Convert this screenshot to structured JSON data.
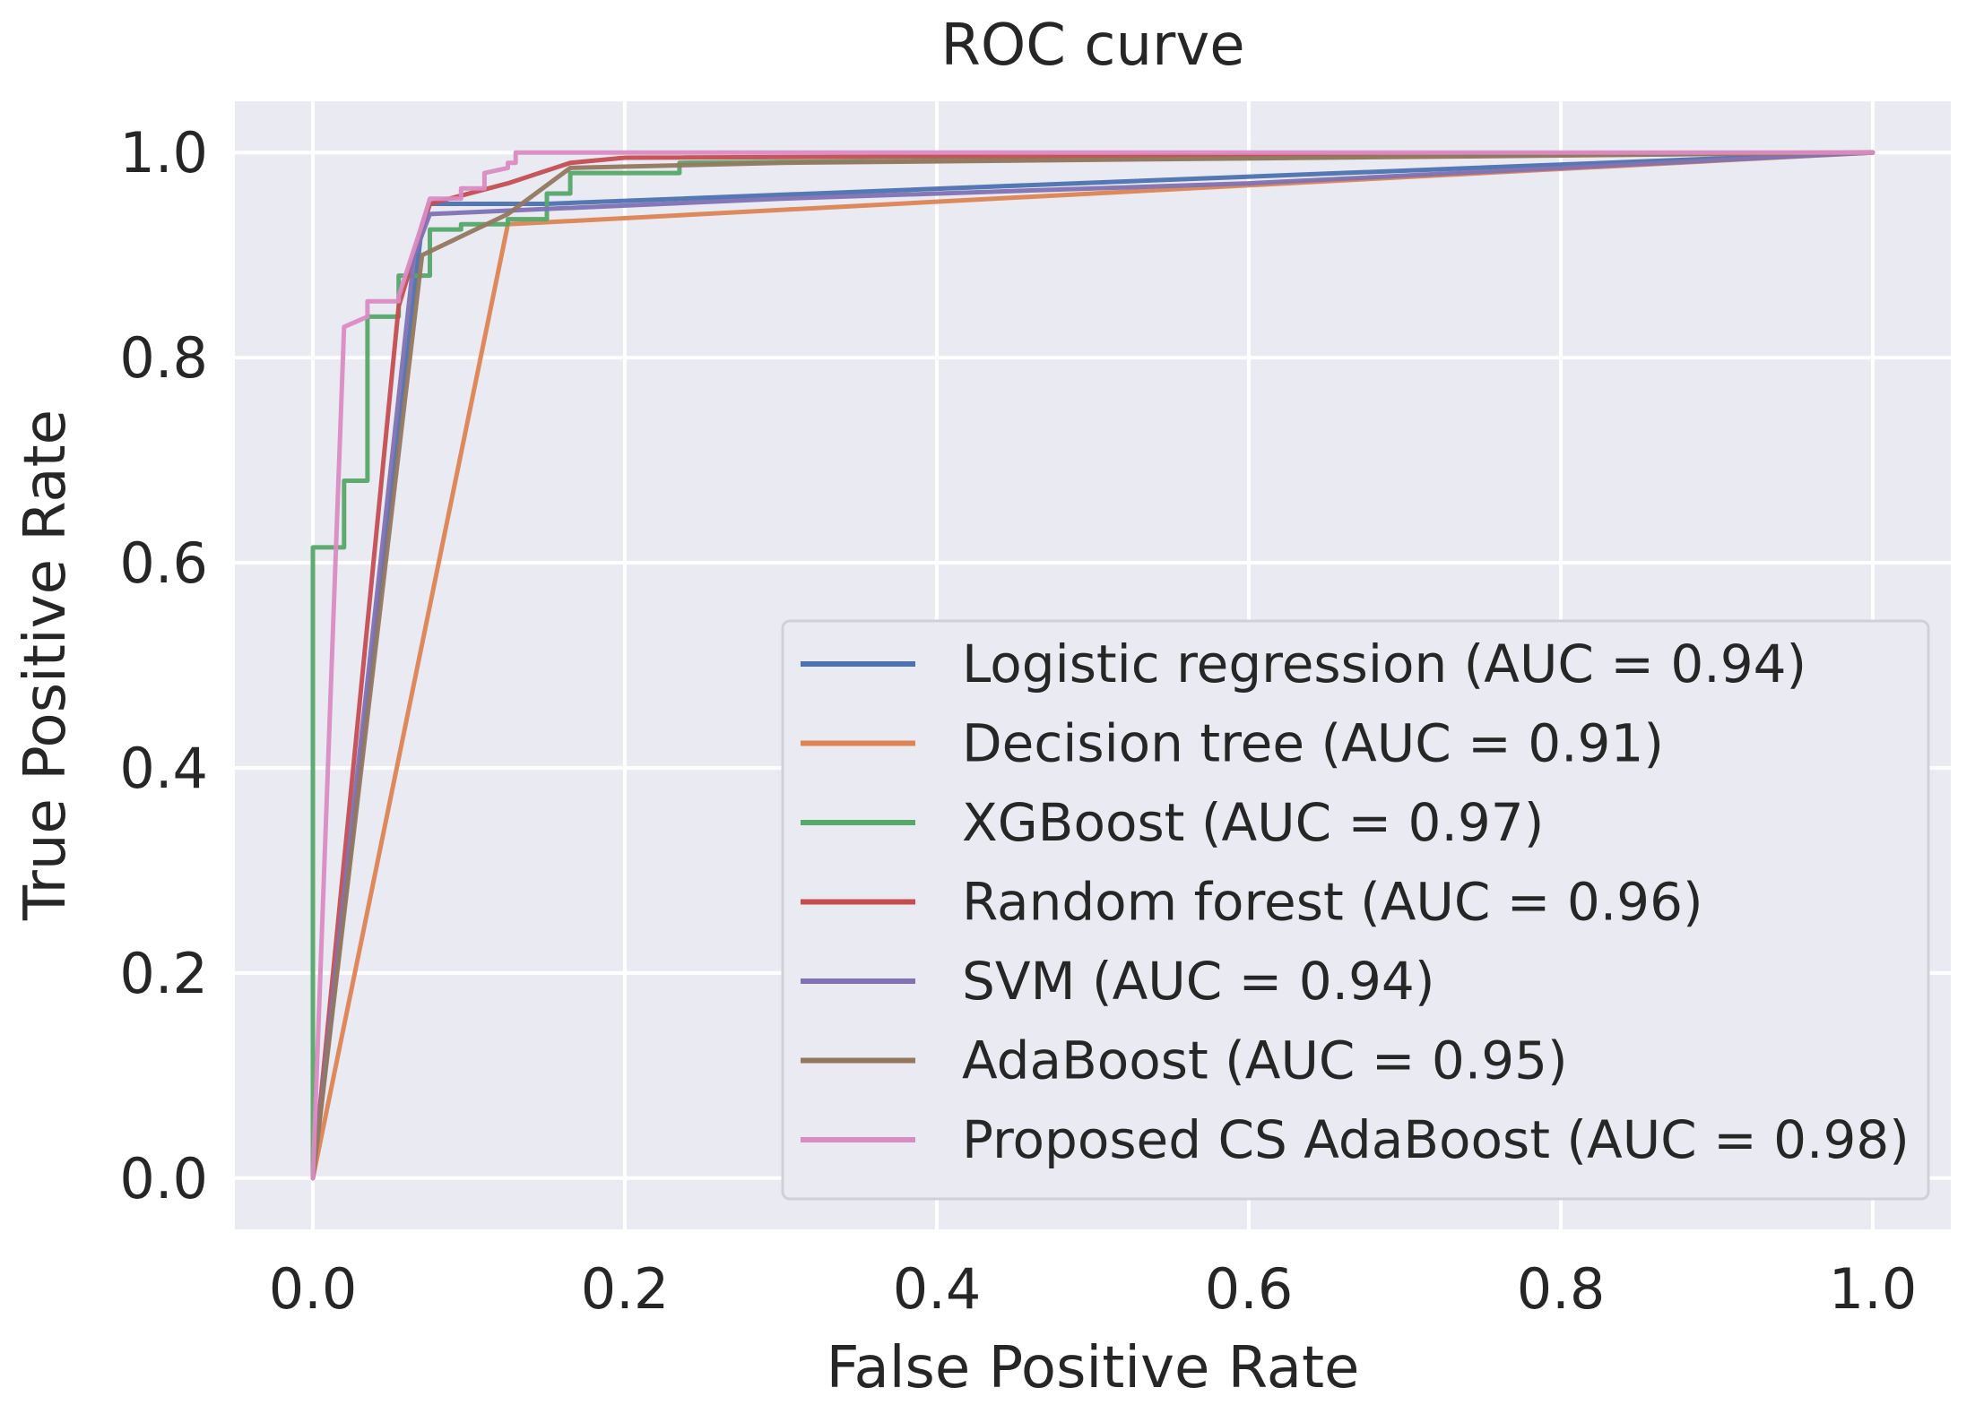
{
  "chart_data": {
    "type": "line",
    "title": "ROC curve",
    "xlabel": "False Positive Rate",
    "ylabel": "True Positive Rate",
    "xlim": [
      -0.05,
      1.05
    ],
    "ylim": [
      -0.05,
      1.05
    ],
    "xticks": [
      0.0,
      0.2,
      0.4,
      0.6,
      0.8,
      1.0
    ],
    "yticks": [
      0.0,
      0.2,
      0.4,
      0.6,
      0.8,
      1.0
    ],
    "tick_labels_x": [
      "0.0",
      "0.2",
      "0.4",
      "0.6",
      "0.8",
      "1.0"
    ],
    "tick_labels_y": [
      "0.0",
      "0.2",
      "0.4",
      "0.6",
      "0.8",
      "1.0"
    ],
    "grid": true,
    "legend_position": "lower-right",
    "series": [
      {
        "name": "Logistic regression (AUC = 0.94)",
        "color": "#4c72b0",
        "x": [
          0.0,
          0.07,
          0.075,
          0.15,
          0.15,
          1.0
        ],
        "y": [
          0.0,
          0.93,
          0.95,
          0.95,
          0.95,
          1.0
        ]
      },
      {
        "name": "Decision tree (AUC = 0.91)",
        "color": "#dd8452",
        "x": [
          0.0,
          0.125,
          1.0
        ],
        "y": [
          0.0,
          0.93,
          1.0
        ]
      },
      {
        "name": "XGBoost (AUC = 0.97)",
        "color": "#55a868",
        "x": [
          0.0,
          0.0,
          0.02,
          0.02,
          0.035,
          0.035,
          0.055,
          0.055,
          0.075,
          0.075,
          0.095,
          0.095,
          0.125,
          0.125,
          0.15,
          0.15,
          0.165,
          0.165,
          0.235,
          0.235,
          1.0
        ],
        "y": [
          0.0,
          0.615,
          0.615,
          0.68,
          0.68,
          0.84,
          0.84,
          0.88,
          0.88,
          0.925,
          0.925,
          0.93,
          0.93,
          0.935,
          0.935,
          0.96,
          0.96,
          0.98,
          0.98,
          0.99,
          1.0
        ]
      },
      {
        "name": "Random forest (AUC = 0.96)",
        "color": "#c44e52",
        "x": [
          0.0,
          0.055,
          0.075,
          0.125,
          0.165,
          0.2,
          1.0
        ],
        "y": [
          0.0,
          0.85,
          0.95,
          0.97,
          0.99,
          0.995,
          1.0
        ]
      },
      {
        "name": "SVM (AUC = 0.94)",
        "color": "#8172b3",
        "x": [
          0.0,
          0.065,
          0.075,
          0.3,
          0.6,
          1.0
        ],
        "y": [
          0.0,
          0.9,
          0.94,
          0.955,
          0.97,
          1.0
        ]
      },
      {
        "name": "AdaBoost (AUC = 0.95)",
        "color": "#937860",
        "x": [
          0.0,
          0.07,
          0.125,
          0.165,
          0.3,
          1.0
        ],
        "y": [
          0.0,
          0.9,
          0.94,
          0.985,
          0.99,
          1.0
        ]
      },
      {
        "name": "Proposed CS AdaBoost (AUC = 0.98)",
        "color": "#da8bc3",
        "x": [
          0.0,
          0.02,
          0.02,
          0.035,
          0.035,
          0.055,
          0.055,
          0.07,
          0.075,
          0.095,
          0.095,
          0.11,
          0.11,
          0.125,
          0.125,
          0.13,
          0.13,
          0.235,
          1.0
        ],
        "y": [
          0.0,
          0.83,
          0.83,
          0.84,
          0.855,
          0.855,
          0.86,
          0.93,
          0.955,
          0.955,
          0.965,
          0.965,
          0.98,
          0.985,
          0.99,
          0.99,
          1.0,
          1.0,
          1.0
        ]
      }
    ]
  }
}
